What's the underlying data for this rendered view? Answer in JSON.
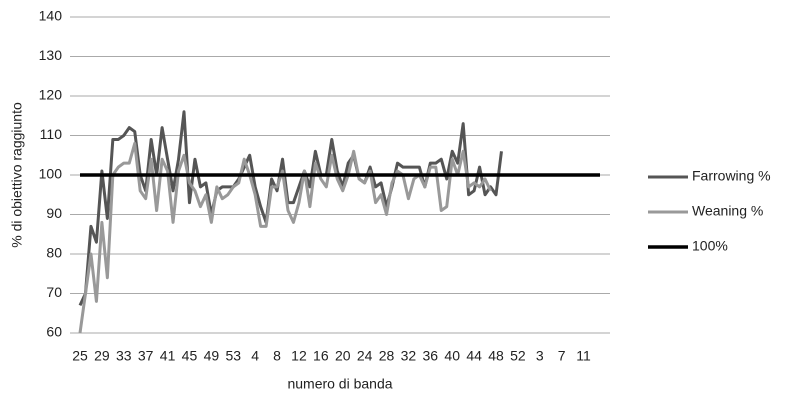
{
  "chart_data": {
    "type": "line",
    "ylabel": "% di obiettivo raggiunto",
    "xlabel": "numero di banda",
    "categories": [
      "25",
      null,
      null,
      null,
      "29",
      null,
      null,
      null,
      "33",
      null,
      null,
      null,
      "37",
      null,
      null,
      null,
      "41",
      null,
      null,
      null,
      "45",
      null,
      null,
      null,
      "49",
      null,
      null,
      null,
      "53",
      null,
      null,
      null,
      "4",
      null,
      null,
      null,
      "8",
      null,
      null,
      null,
      "12",
      null,
      null,
      null,
      "16",
      null,
      null,
      null,
      "20",
      null,
      null,
      null,
      "24",
      null,
      null,
      null,
      "28",
      null,
      null,
      null,
      "32",
      null,
      null,
      null,
      "36",
      null,
      null,
      null,
      "40",
      null,
      null,
      null,
      "44",
      null,
      null,
      null,
      "48",
      null,
      null,
      null,
      "52",
      null,
      null,
      null,
      "3",
      null,
      null,
      null,
      "7",
      null,
      null,
      null,
      "11",
      null,
      null,
      null
    ],
    "series": [
      {
        "name": "Farrowing %",
        "color": "#555555",
        "width": 3,
        "values": [
          67,
          70,
          87,
          83,
          101,
          89,
          109,
          109,
          110,
          112,
          111,
          100,
          96,
          109,
          100,
          112,
          104,
          96,
          104,
          116,
          93,
          104,
          97,
          98,
          90,
          96,
          97,
          97,
          97,
          99,
          102,
          105,
          97,
          92,
          88,
          99,
          96,
          104,
          93,
          93,
          97,
          101,
          97,
          106,
          100,
          100,
          109,
          101,
          97,
          103,
          105,
          99,
          98,
          102,
          97,
          98,
          92,
          97,
          103,
          102,
          102,
          102,
          102,
          97,
          103,
          103,
          104,
          99,
          106,
          103,
          113,
          95,
          96,
          102,
          95,
          97,
          95,
          106,
          null,
          null,
          null,
          null,
          null,
          null,
          null,
          null,
          null,
          null,
          null,
          null,
          null,
          null,
          null,
          null,
          null,
          null
        ]
      },
      {
        "name": "Weaning %",
        "color": "#999999",
        "width": 3,
        "values": [
          60,
          70,
          80,
          68,
          88,
          74,
          100,
          102,
          103,
          103,
          108,
          96,
          94,
          104,
          91,
          104,
          101,
          88,
          101,
          105,
          98,
          96,
          92,
          95,
          88,
          97,
          94,
          95,
          97,
          98,
          104,
          100,
          95,
          87,
          87,
          97,
          97,
          101,
          91,
          88,
          93,
          101,
          92,
          103,
          99,
          97,
          105,
          99,
          96,
          100,
          106,
          99,
          98,
          101,
          93,
          95,
          90,
          98,
          101,
          100,
          94,
          99,
          100,
          97,
          102,
          102,
          91,
          92,
          104,
          100,
          106,
          97,
          98,
          97,
          99,
          96,
          null,
          null,
          null,
          null,
          null,
          null,
          null,
          null,
          null,
          null,
          null,
          null,
          null,
          null,
          null,
          null,
          null,
          null,
          null,
          null
        ]
      },
      {
        "name": "100%",
        "color": "#000000",
        "width": 3.5,
        "values": [
          100,
          100,
          100,
          100,
          100,
          100,
          100,
          100,
          100,
          100,
          100,
          100,
          100,
          100,
          100,
          100,
          100,
          100,
          100,
          100,
          100,
          100,
          100,
          100,
          100,
          100,
          100,
          100,
          100,
          100,
          100,
          100,
          100,
          100,
          100,
          100,
          100,
          100,
          100,
          100,
          100,
          100,
          100,
          100,
          100,
          100,
          100,
          100,
          100,
          100,
          100,
          100,
          100,
          100,
          100,
          100,
          100,
          100,
          100,
          100,
          100,
          100,
          100,
          100,
          100,
          100,
          100,
          100,
          100,
          100,
          100,
          100,
          100,
          100,
          100,
          100,
          100,
          100,
          100,
          100,
          100,
          100,
          100,
          100,
          100,
          100,
          100,
          100,
          100,
          100,
          100,
          100,
          100,
          100,
          100,
          100
        ]
      }
    ],
    "ylim": [
      60,
      140
    ],
    "yticks": [
      60,
      70,
      80,
      90,
      100,
      110,
      120,
      130,
      140
    ],
    "grid": true,
    "legend": "right"
  }
}
